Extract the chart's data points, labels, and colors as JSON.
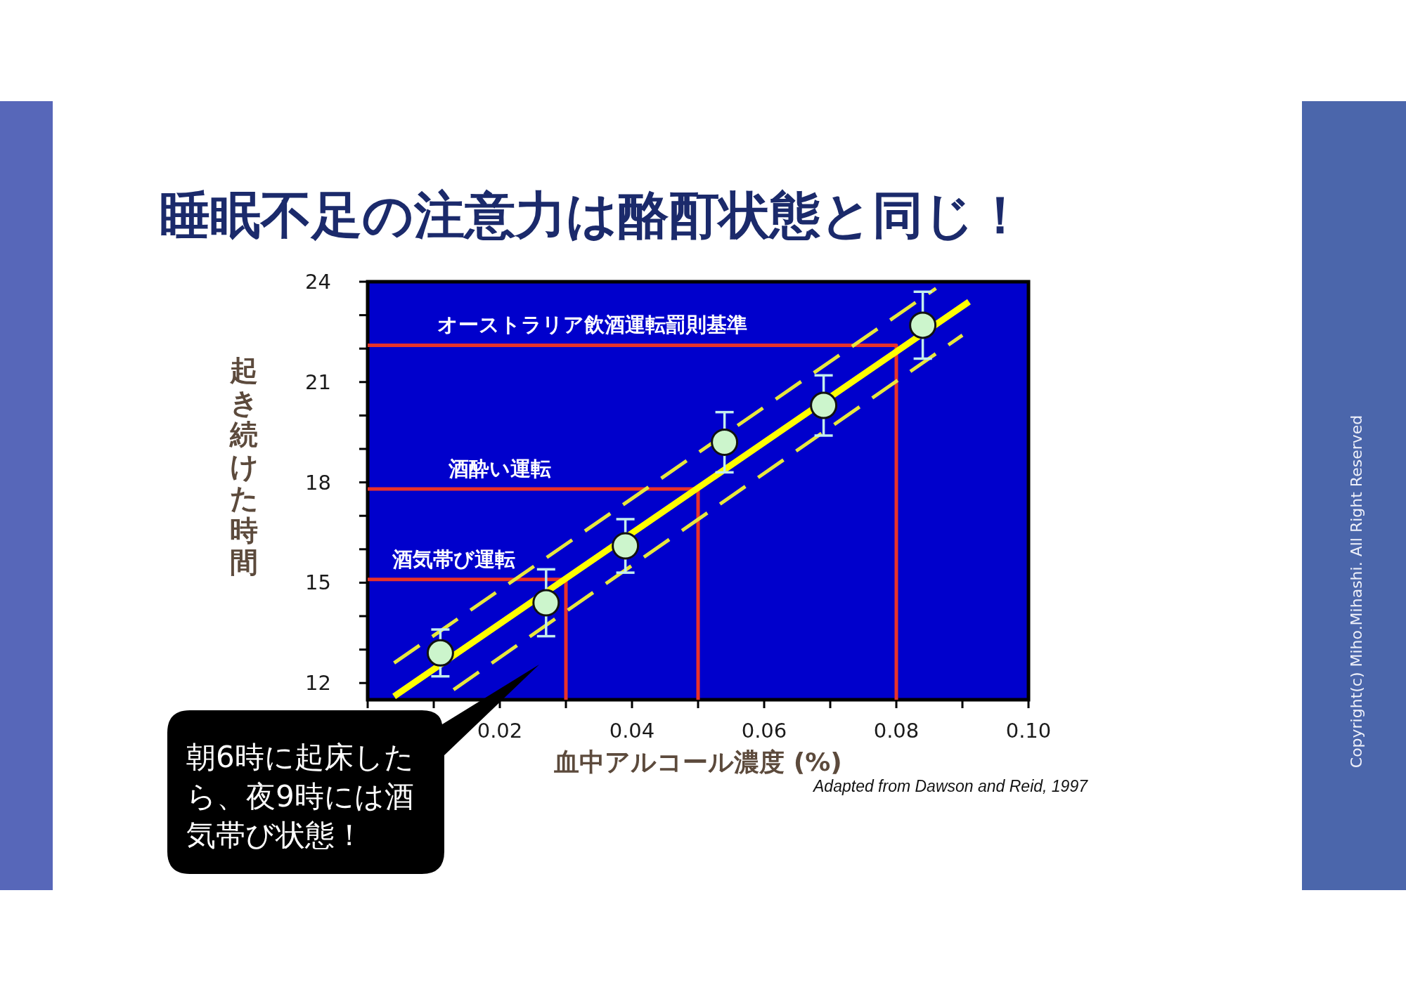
{
  "chart_data": {
    "type": "scatter",
    "title": "睡眠不足の注意力は酪酊状態と同じ！",
    "xlabel": "血中アルコール濃度 (%)",
    "ylabel": "起き続けた時間",
    "xlim": [
      0,
      0.1
    ],
    "xticks": [
      {
        "value": 0,
        "label": null
      },
      {
        "value": 0.01,
        "label": null
      },
      0.02,
      {
        "value": 0.03,
        "label": null
      },
      0.04,
      {
        "value": 0.05,
        "label": null
      },
      0.06,
      {
        "value": 0.07,
        "label": null
      },
      0.08,
      {
        "value": 0.09,
        "label": null
      },
      {
        "value": 0.1,
        "label": "0.10"
      }
    ],
    "ylim": [
      11.5,
      24
    ],
    "yticks": [
      12,
      {
        "value": 13,
        "label": null
      },
      {
        "value": 14,
        "label": null
      },
      15,
      {
        "value": 16,
        "label": null
      },
      {
        "value": 17,
        "label": null
      },
      18,
      {
        "value": 19,
        "label": null
      },
      {
        "value": 20,
        "label": null
      },
      21,
      {
        "value": 22,
        "label": null
      },
      {
        "value": 23,
        "label": null
      },
      24
    ],
    "series": [
      {
        "type": "line",
        "x": [
          0,
          0.03,
          0.03
        ],
        "values": [
          15.1,
          15.1,
          11.5
        ],
        "color": "#e8322a",
        "line_style": "solid"
      },
      {
        "type": "line",
        "x": [
          0,
          0.05,
          0.05
        ],
        "values": [
          17.8,
          17.8,
          11.5
        ],
        "color": "#e8322a",
        "line_style": "solid"
      },
      {
        "type": "line",
        "x": [
          0,
          0.08,
          0.08
        ],
        "values": [
          22.1,
          22.1,
          11.5
        ],
        "color": "#e8322a",
        "line_style": "solid"
      },
      {
        "type": "line",
        "x": [
          0.004,
          0.086
        ],
        "values": [
          12.6,
          23.8
        ],
        "color": "#e8e83c",
        "line_style": "dashed"
      },
      {
        "type": "line",
        "x": [
          0.004,
          0.091
        ],
        "values": [
          11.6,
          23.4
        ],
        "color": "#ffff00",
        "line_style": "solid"
      },
      {
        "type": "line",
        "x": [
          0.013,
          0.09
        ],
        "values": [
          11.8,
          22.4
        ],
        "color": "#e8e83c",
        "line_style": "dashed"
      },
      {
        "x": [
          0.011,
          0.027,
          0.039,
          0.054,
          0.069,
          0.084
        ],
        "values": [
          12.9,
          14.4,
          16.1,
          19.2,
          20.3,
          22.7
        ],
        "errors": [
          0.7,
          1.0,
          0.8,
          0.9,
          0.9,
          1.0
        ],
        "color": "#ccf5cc",
        "marker": "circle"
      }
    ],
    "annotations": [
      {
        "text": "酒気帯び運転",
        "x": 0.013,
        "y": 15.1
      },
      {
        "text": "酒酔い運転",
        "x": 0.02,
        "y": 17.8
      },
      {
        "text": "オーストラリア飲酒運転罰則基準",
        "x": 0.034,
        "y": 22.1
      },
      "朝6時に起床したら、夜9時には酒気帯び状態！",
      "Adapted from Dawson and Reid, 1997",
      "Copyright(c) Miho.Mihashi. All Right Reserved"
    ]
  }
}
